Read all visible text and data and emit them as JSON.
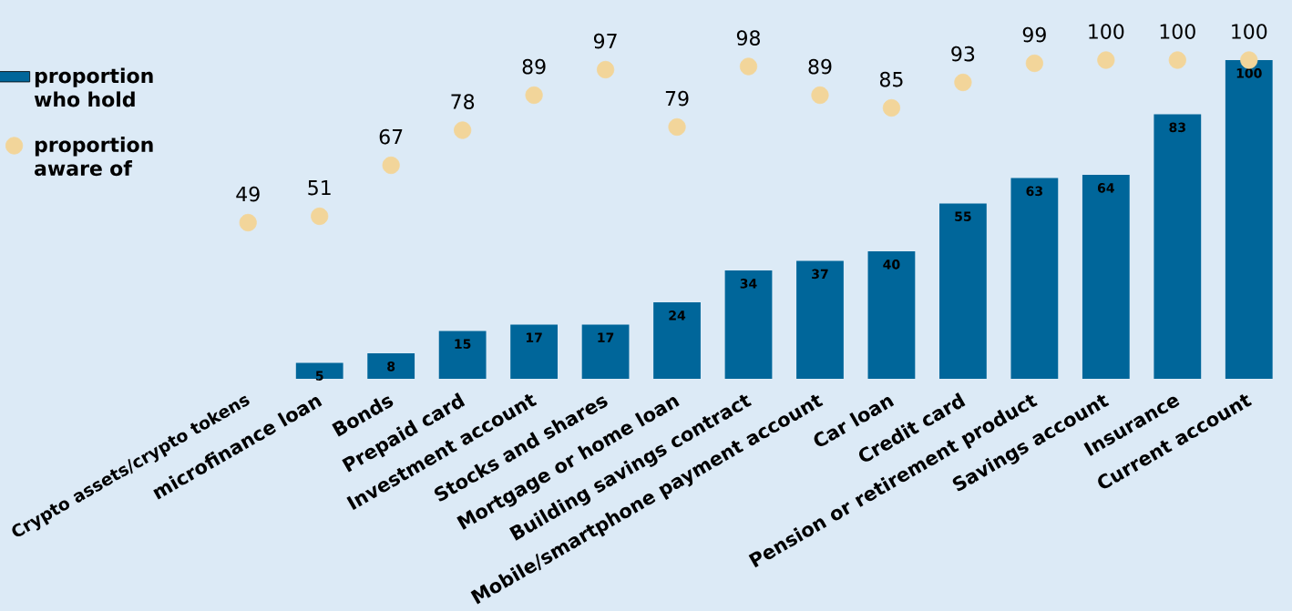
{
  "chart_data": {
    "type": "bar",
    "categories": [
      "Crypto assets/crypto tokens",
      "microfinance loan",
      "Bonds",
      "Prepaid card",
      "Investment account",
      "Stocks and shares",
      "Mortgage or home loan",
      "Building savings contract",
      "Mobile/smartphone payment account",
      "Car loan",
      "Credit card",
      "Pension or retirement product",
      "Savings  account",
      "Insurance",
      "Current  account"
    ],
    "series": [
      {
        "name": "proportion who hold",
        "color": "#00669a",
        "values": [
          null,
          5,
          8,
          15,
          17,
          17,
          24,
          34,
          37,
          40,
          55,
          63,
          64,
          83,
          100
        ]
      },
      {
        "name": "proportion aware of",
        "type": "scatter",
        "marker": "circle",
        "color": "#f2d59a",
        "values": [
          49,
          51,
          67,
          78,
          89,
          97,
          79,
          98,
          89,
          85,
          93,
          99,
          100,
          100,
          100
        ]
      }
    ],
    "ylim": [
      0,
      100
    ],
    "data_labels": true,
    "legend": "left",
    "tick_labels": "x"
  }
}
